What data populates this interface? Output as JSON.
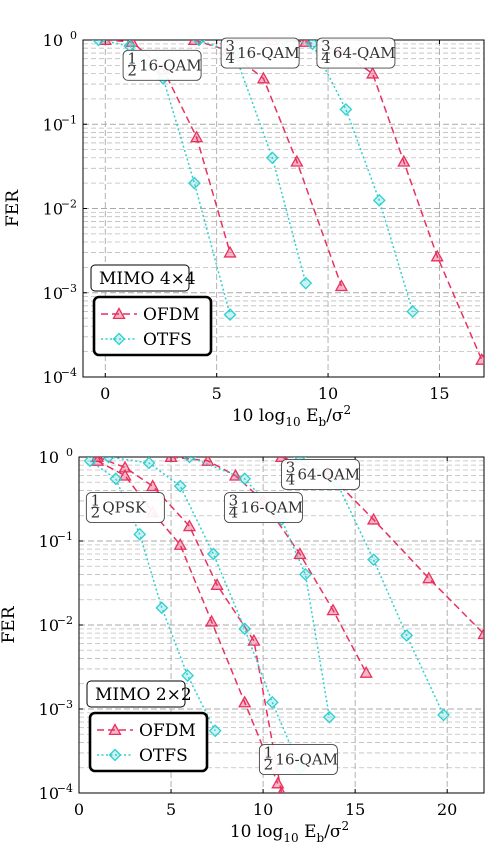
{
  "chart_data": [
    {
      "type": "line",
      "panel": "top",
      "yscale": "log",
      "xlim": [
        -1,
        17
      ],
      "ylim": [
        0.0001,
        1
      ],
      "xticks": [
        0,
        5,
        10,
        15
      ],
      "xtick_labels": [
        "0",
        "5",
        "10",
        "15"
      ],
      "yticks": [
        1,
        0.1,
        0.01,
        0.001,
        0.0001
      ],
      "ytick_labels": [
        "10",
        "10",
        "10",
        "10",
        "10"
      ],
      "ytick_exponents": [
        "0",
        "−1",
        "−2",
        "−3",
        "−4"
      ],
      "xlabel_main": "10 log",
      "xlabel_sub": "10",
      "xlabel_rest": " E",
      "xlabel_sub2": "b",
      "xlabel_end": "/σ",
      "xlabel_sup": "2",
      "ylabel": "FER",
      "grid": true,
      "legend_title": "MIMO 4×4",
      "legend_entries": [
        "OFDM",
        "OTFS"
      ],
      "legend_placement": "bottom-left",
      "colors": {
        "OFDM": "#e8315f",
        "OTFS": "#2ecfcf"
      },
      "annotations": [
        {
          "frac_num": "1",
          "frac_den": "2",
          "text": "16-QAM",
          "x": 0.8,
          "y": 0.5
        },
        {
          "frac_num": "3",
          "frac_den": "4",
          "text": "16-QAM",
          "x": 5.2,
          "y": 0.7
        },
        {
          "frac_num": "3",
          "frac_den": "4",
          "text": "64-QAM",
          "x": 9.5,
          "y": 0.7
        }
      ],
      "series": [
        {
          "name": "OFDM",
          "group": "1/2 16-QAM",
          "x": [
            0,
            1.2,
            2.6,
            4.1,
            5.6
          ],
          "y": [
            1,
            0.95,
            0.45,
            0.07,
            0.003
          ]
        },
        {
          "name": "OFDM",
          "group": "3/4 16-QAM",
          "x": [
            4.0,
            5.5,
            7.1,
            8.6,
            10.6
          ],
          "y": [
            1,
            0.75,
            0.35,
            0.036,
            0.0012
          ]
        },
        {
          "name": "OFDM",
          "group": "3/4 64-QAM",
          "x": [
            7.5,
            9.0,
            10.5,
            12.0,
            13.4,
            14.9,
            16.9
          ],
          "y": [
            1,
            0.95,
            0.75,
            0.4,
            0.036,
            0.0027,
            0.00016
          ]
        },
        {
          "name": "OTFS",
          "group": "1/2 16-QAM",
          "x": [
            -0.3,
            1.1,
            2.6,
            4.0,
            5.6
          ],
          "y": [
            1,
            0.85,
            0.35,
            0.02,
            0.00055
          ]
        },
        {
          "name": "OTFS",
          "group": "3/4 16-QAM",
          "x": [
            4.2,
            5.8,
            7.5,
            9.0
          ],
          "y": [
            1,
            0.7,
            0.04,
            0.0013
          ]
        },
        {
          "name": "OTFS",
          "group": "3/4 64-QAM",
          "x": [
            8.0,
            9.3,
            10.8,
            12.3,
            13.8
          ],
          "y": [
            1,
            0.9,
            0.15,
            0.0125,
            0.0006
          ]
        }
      ]
    },
    {
      "type": "line",
      "panel": "bottom",
      "yscale": "log",
      "xlim": [
        0,
        22
      ],
      "ylim": [
        0.0001,
        1
      ],
      "xticks": [
        0,
        5,
        10,
        15,
        20
      ],
      "xtick_labels": [
        "0",
        "5",
        "10",
        "15",
        "20"
      ],
      "yticks": [
        1,
        0.1,
        0.01,
        0.001,
        0.0001
      ],
      "ytick_labels": [
        "10",
        "10",
        "10",
        "10",
        "10"
      ],
      "ytick_exponents": [
        "0",
        "−1",
        "−2",
        "−3",
        "−4"
      ],
      "xlabel_main": "10 log",
      "xlabel_sub": "10",
      "xlabel_rest": " E",
      "xlabel_sub2": "b",
      "xlabel_end": "/σ",
      "xlabel_sup": "2",
      "ylabel": "FER",
      "grid": true,
      "legend_title": "MIMO 2×2",
      "legend_entries": [
        "OFDM",
        "OTFS"
      ],
      "legend_placement": "bottom-left",
      "colors": {
        "OFDM": "#e8315f",
        "OTFS": "#2ecfcf"
      },
      "annotations": [
        {
          "frac_num": "1",
          "frac_den": "2",
          "text": "QPSK",
          "x": 0.4,
          "y": 0.25
        },
        {
          "frac_num": "3",
          "frac_den": "4",
          "text": "16-QAM",
          "x": 7.9,
          "y": 0.25
        },
        {
          "frac_num": "3",
          "frac_den": "4",
          "text": "64-QAM",
          "x": 11.0,
          "y": 0.62
        },
        {
          "frac_num": "1",
          "frac_den": "2",
          "text": "16-QAM",
          "x": 9.8,
          "y": 0.00025
        }
      ],
      "series": [
        {
          "name": "OFDM",
          "group": "1/2 QPSK",
          "x": [
            1,
            2.5,
            4.0,
            5.5,
            7.2,
            9.0,
            10.8
          ],
          "y": [
            0.9,
            0.6,
            0.22,
            0.09,
            0.011,
            0.0012,
            0.00013
          ]
        },
        {
          "name": "OFDM",
          "group": "1/2 16-QAM",
          "x": [
            1.0,
            2.5,
            4.0,
            6.0,
            7.5,
            9.5,
            11.0
          ],
          "y": [
            1,
            0.75,
            0.45,
            0.15,
            0.03,
            0.0065,
            0.0001
          ]
        },
        {
          "name": "OFDM",
          "group": "3/4 16-QAM",
          "x": [
            5.0,
            7.0,
            8.5,
            10.0,
            12.0,
            13.8,
            15.6
          ],
          "y": [
            1,
            0.9,
            0.6,
            0.3,
            0.07,
            0.015,
            0.0027
          ]
        },
        {
          "name": "OFDM",
          "group": "3/4 64-QAM",
          "x": [
            11.0,
            13.5,
            16.0,
            19.0,
            22.0
          ],
          "y": [
            1,
            0.65,
            0.18,
            0.036,
            0.0078
          ]
        },
        {
          "name": "OTFS",
          "group": "1/2 QPSK",
          "x": [
            0.6,
            2.0,
            3.3,
            4.5,
            5.9,
            7.4
          ],
          "y": [
            0.9,
            0.55,
            0.12,
            0.016,
            0.0025,
            0.00055
          ]
        },
        {
          "name": "OTFS",
          "group": "1/2 16-QAM",
          "x": [
            1.6,
            3.8,
            5.5,
            7.3,
            9.0,
            10.5,
            12.0
          ],
          "y": [
            1,
            0.85,
            0.45,
            0.07,
            0.009,
            0.0012,
            0.0002
          ]
        },
        {
          "name": "OTFS",
          "group": "3/4 16-QAM",
          "x": [
            6.0,
            9.0,
            11.0,
            12.3,
            13.6
          ],
          "y": [
            1,
            0.55,
            0.18,
            0.04,
            0.0008
          ]
        },
        {
          "name": "OTFS",
          "group": "3/4 64-QAM",
          "x": [
            12.0,
            14.0,
            16.0,
            17.8,
            19.8
          ],
          "y": [
            1,
            0.5,
            0.06,
            0.0075,
            0.00085
          ]
        }
      ]
    }
  ]
}
